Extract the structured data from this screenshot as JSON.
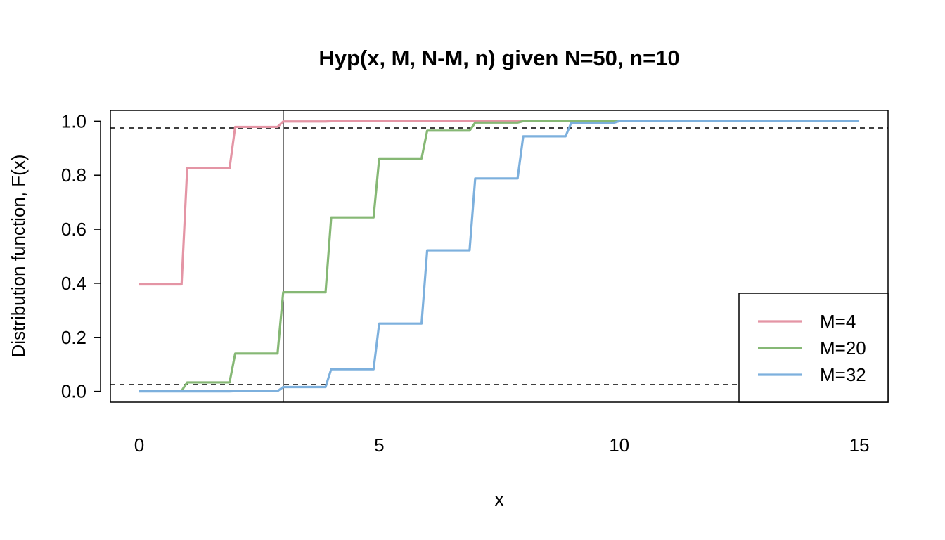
{
  "chart_data": {
    "type": "line",
    "title": "Hyp(x, M, N-M, n) given N=50, n=10",
    "xlabel": "x",
    "ylabel": "Distribution function, F(x)",
    "xlim": [
      -0.6,
      15.6
    ],
    "ylim": [
      -0.04,
      1.04
    ],
    "x_ticks": [
      0,
      5,
      10,
      15
    ],
    "x_tick_labels": [
      "0",
      "5",
      "10",
      "15"
    ],
    "y_ticks": [
      0.0,
      0.2,
      0.4,
      0.6,
      0.8,
      1.0
    ],
    "y_tick_labels": [
      "0.0",
      "0.2",
      "0.4",
      "0.6",
      "0.8",
      "1.0"
    ],
    "legend_position": "bottom-right",
    "reference_lines": {
      "horizontal_dashed": [
        0.025,
        0.975
      ],
      "vertical_solid": [
        3
      ]
    },
    "series": [
      {
        "name": "M=4",
        "color": "#E495A5",
        "x": [
          0,
          1,
          2,
          3,
          4
        ],
        "y": [
          0.396,
          0.826,
          0.979,
          0.999,
          1.0
        ],
        "x_end": 8
      },
      {
        "name": "M=20",
        "color": "#86B875",
        "x": [
          0,
          1,
          2,
          3,
          4,
          5,
          6,
          7,
          8,
          9,
          10
        ],
        "y": [
          0.002,
          0.033,
          0.14,
          0.367,
          0.644,
          0.862,
          0.965,
          0.995,
          1.0,
          1.0,
          1.0
        ],
        "x_end": 10
      },
      {
        "name": "M=32",
        "color": "#7DB0DD",
        "x": [
          0,
          1,
          2,
          3,
          4,
          5,
          6,
          7,
          8,
          9,
          10
        ],
        "y": [
          0.0,
          0.0,
          0.001,
          0.016,
          0.082,
          0.251,
          0.522,
          0.788,
          0.944,
          0.994,
          1.0
        ],
        "x_end": 15
      }
    ]
  }
}
